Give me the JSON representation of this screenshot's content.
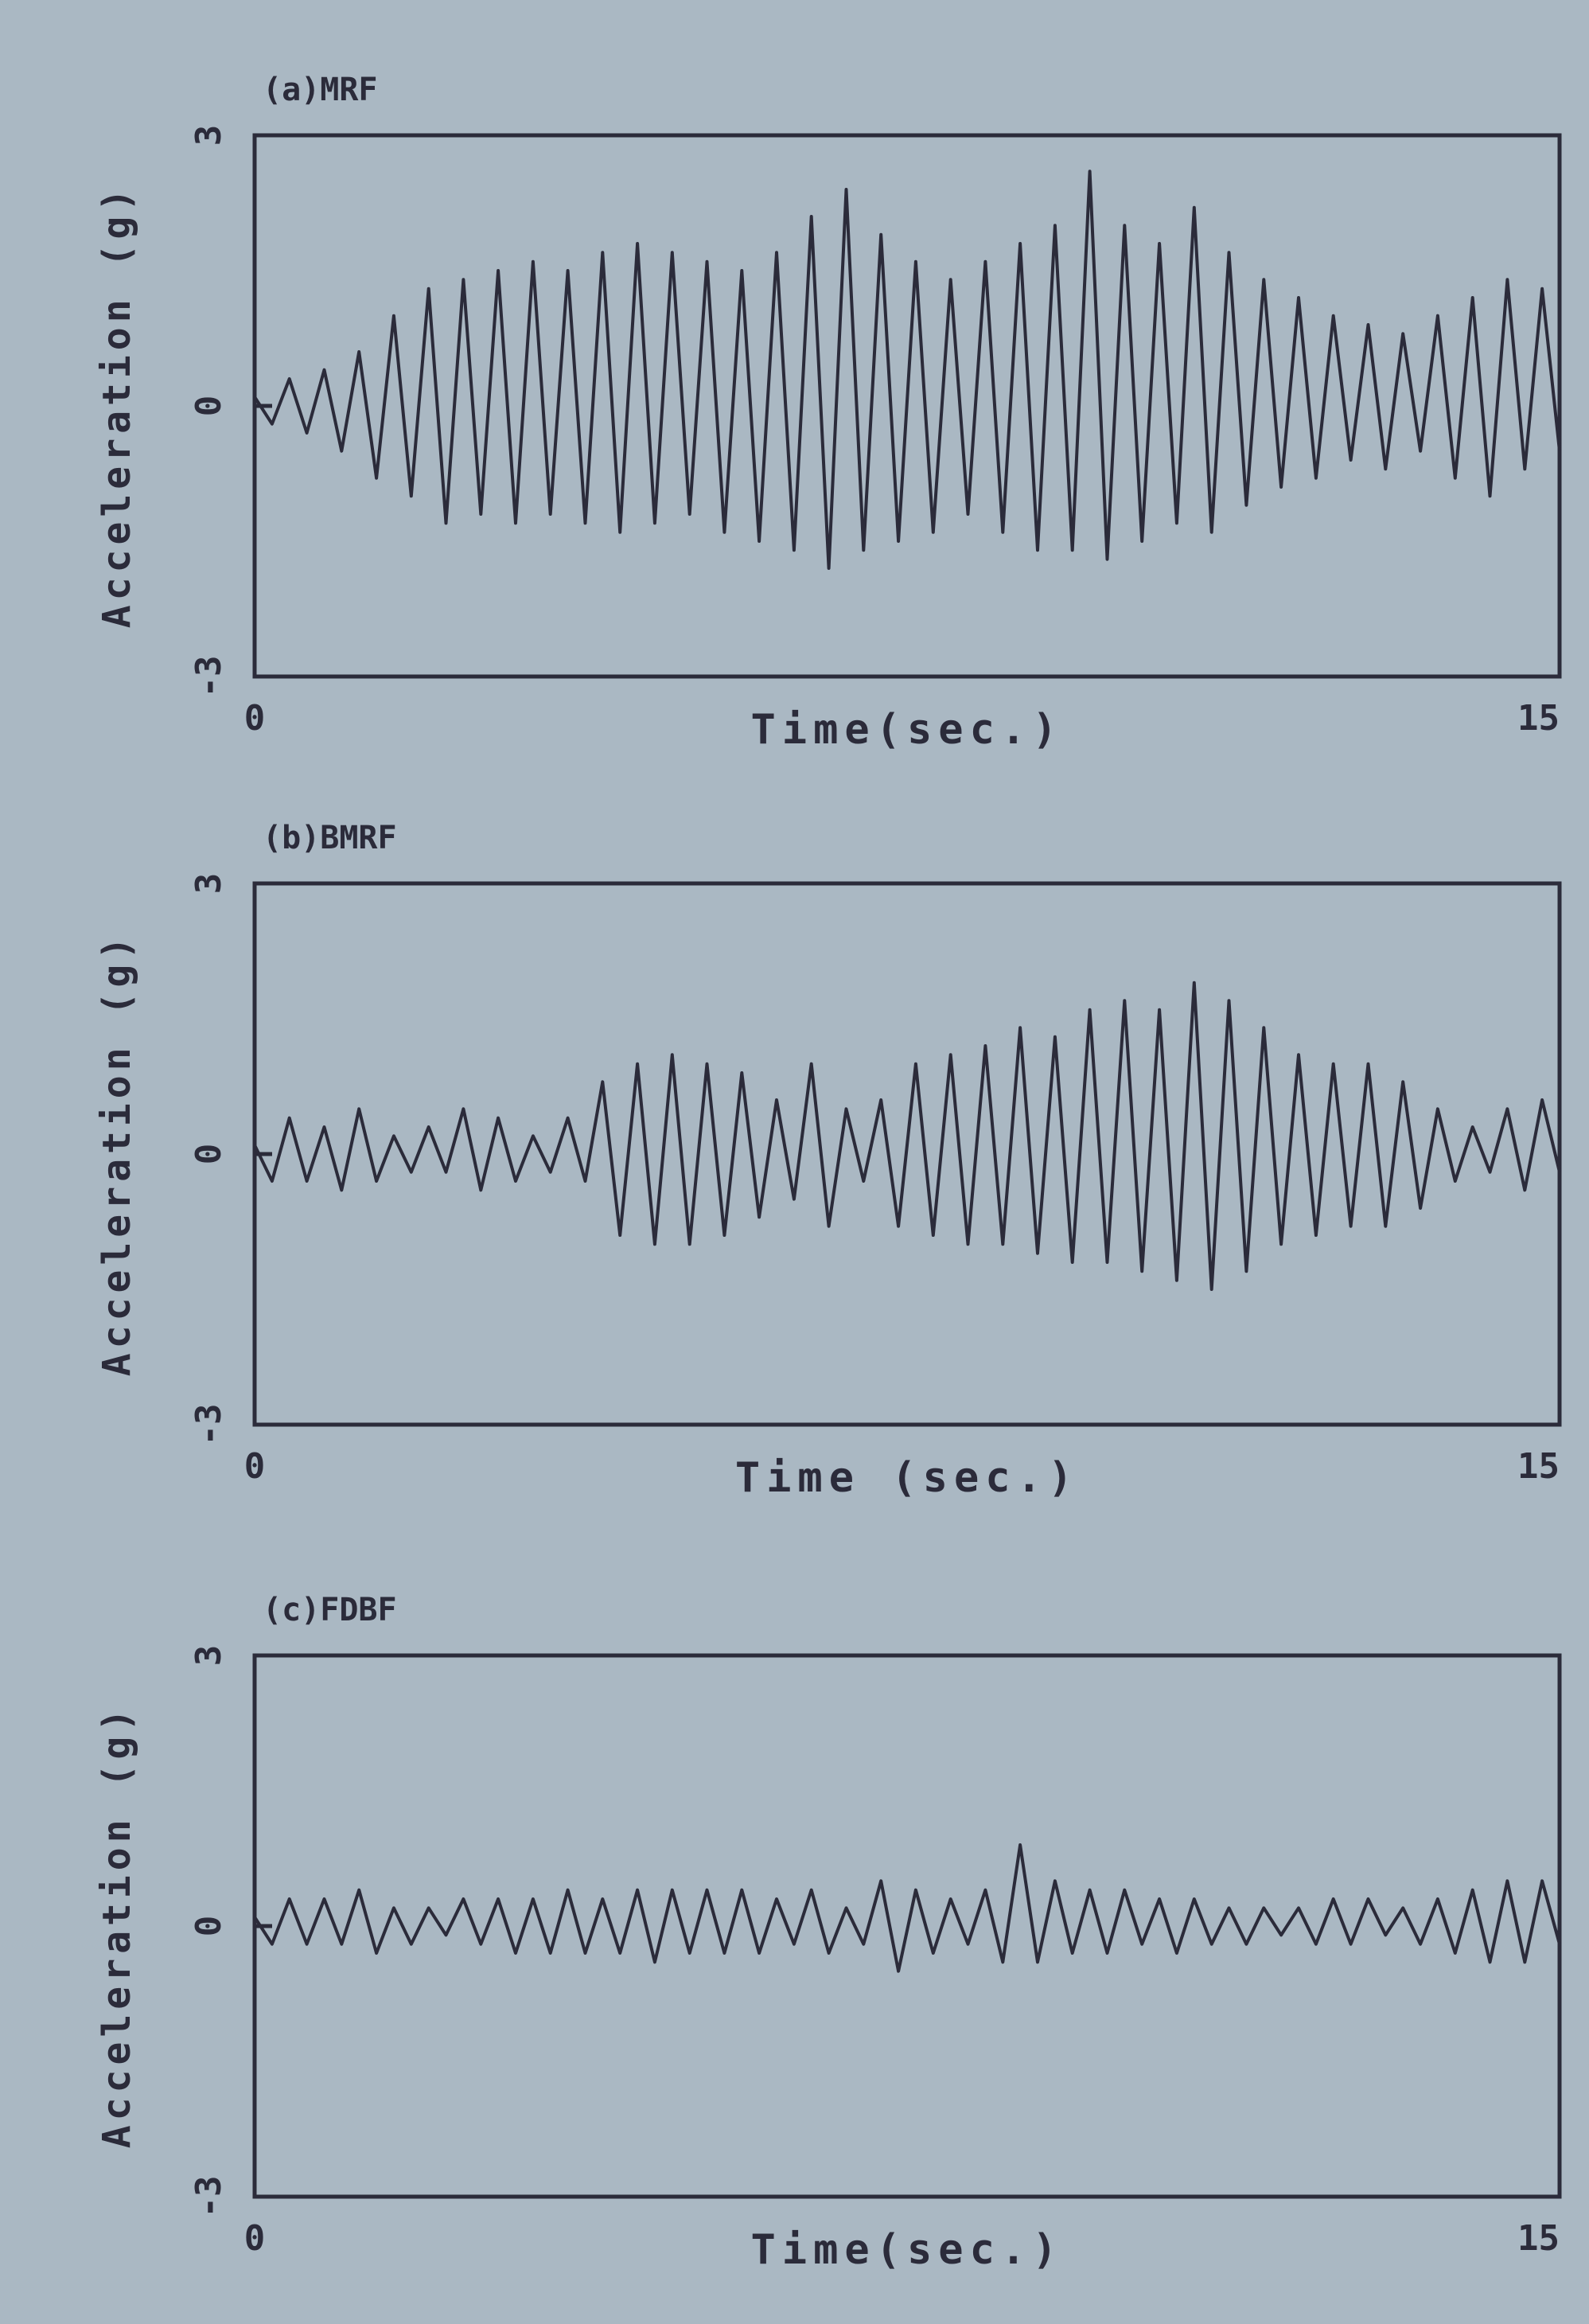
{
  "chart_data": [
    {
      "type": "line",
      "title": "(a)MRF",
      "xlabel": "Time(sec.)",
      "ylabel": "Acceleration (g)",
      "color": "#2b2b3a",
      "xlim": [
        0,
        15
      ],
      "xticks": [
        0,
        15
      ],
      "ylim": [
        -3,
        3
      ],
      "yticks": [
        -3,
        0,
        3
      ],
      "x": [
        0,
        0.2,
        0.4,
        0.6,
        0.8,
        1,
        1.2,
        1.4,
        1.6,
        1.8,
        2,
        2.2,
        2.4,
        2.6,
        2.8,
        3,
        3.2,
        3.4,
        3.6,
        3.8,
        4,
        4.2,
        4.4,
        4.6,
        4.8,
        5,
        5.2,
        5.4,
        5.6,
        5.8,
        6,
        6.2,
        6.4,
        6.6,
        6.8,
        7,
        7.2,
        7.4,
        7.6,
        7.8,
        8,
        8.2,
        8.4,
        8.6,
        8.8,
        9,
        9.2,
        9.4,
        9.6,
        9.8,
        10,
        10.2,
        10.4,
        10.6,
        10.8,
        11,
        11.2,
        11.4,
        11.6,
        11.8,
        12,
        12.2,
        12.4,
        12.6,
        12.8,
        13,
        13.2,
        13.4,
        13.6,
        13.8,
        14,
        14.2,
        14.4,
        14.6,
        14.8,
        15
      ],
      "values": [
        0.1,
        -0.2,
        0.3,
        -0.3,
        0.4,
        -0.5,
        0.6,
        -0.8,
        1.0,
        -1.0,
        1.3,
        -1.3,
        1.4,
        -1.2,
        1.5,
        -1.3,
        1.6,
        -1.2,
        1.5,
        -1.3,
        1.7,
        -1.4,
        1.8,
        -1.3,
        1.7,
        -1.2,
        1.6,
        -1.4,
        1.5,
        -1.5,
        1.7,
        -1.6,
        2.1,
        -1.8,
        2.4,
        -1.6,
        1.9,
        -1.5,
        1.6,
        -1.4,
        1.4,
        -1.2,
        1.6,
        -1.4,
        1.8,
        -1.6,
        2.0,
        -1.6,
        2.6,
        -1.7,
        2.0,
        -1.5,
        1.8,
        -1.3,
        2.2,
        -1.4,
        1.7,
        -1.1,
        1.4,
        -0.9,
        1.2,
        -0.8,
        1.0,
        -0.6,
        0.9,
        -0.7,
        0.8,
        -0.5,
        1.0,
        -0.8,
        1.2,
        -1.0,
        1.4,
        -0.7,
        1.3,
        -0.5
      ]
    },
    {
      "type": "line",
      "title": "(b)BMRF",
      "xlabel": "Time (sec.)",
      "ylabel": "Acceleration (g)",
      "color": "#2b2b3a",
      "xlim": [
        0,
        15
      ],
      "xticks": [
        0,
        15
      ],
      "ylim": [
        -3,
        3
      ],
      "yticks": [
        -3,
        0,
        3
      ],
      "x": [
        0,
        0.2,
        0.4,
        0.6,
        0.8,
        1,
        1.2,
        1.4,
        1.6,
        1.8,
        2,
        2.2,
        2.4,
        2.6,
        2.8,
        3,
        3.2,
        3.4,
        3.6,
        3.8,
        4,
        4.2,
        4.4,
        4.6,
        4.8,
        5,
        5.2,
        5.4,
        5.6,
        5.8,
        6,
        6.2,
        6.4,
        6.6,
        6.8,
        7,
        7.2,
        7.4,
        7.6,
        7.8,
        8,
        8.2,
        8.4,
        8.6,
        8.8,
        9,
        9.2,
        9.4,
        9.6,
        9.8,
        10,
        10.2,
        10.4,
        10.6,
        10.8,
        11,
        11.2,
        11.4,
        11.6,
        11.8,
        12,
        12.2,
        12.4,
        12.6,
        12.8,
        13,
        13.2,
        13.4,
        13.6,
        13.8,
        14,
        14.2,
        14.4,
        14.6,
        14.8,
        15
      ],
      "values": [
        0.1,
        -0.3,
        0.4,
        -0.3,
        0.3,
        -0.4,
        0.5,
        -0.3,
        0.2,
        -0.2,
        0.3,
        -0.2,
        0.5,
        -0.4,
        0.4,
        -0.3,
        0.2,
        -0.2,
        0.4,
        -0.3,
        0.8,
        -0.9,
        1.0,
        -1.0,
        1.1,
        -1.0,
        1.0,
        -0.9,
        0.9,
        -0.7,
        0.6,
        -0.5,
        1.0,
        -0.8,
        0.5,
        -0.3,
        0.6,
        -0.8,
        1.0,
        -0.9,
        1.1,
        -1.0,
        1.2,
        -1.0,
        1.4,
        -1.1,
        1.3,
        -1.2,
        1.6,
        -1.2,
        1.7,
        -1.3,
        1.6,
        -1.4,
        1.9,
        -1.5,
        1.7,
        -1.3,
        1.4,
        -1.0,
        1.1,
        -0.9,
        1.0,
        -0.8,
        1.0,
        -0.8,
        0.8,
        -0.6,
        0.5,
        -0.3,
        0.3,
        -0.2,
        0.5,
        -0.4,
        0.6,
        -0.2
      ]
    },
    {
      "type": "line",
      "title": "(c)FDBF",
      "xlabel": "Time(sec.)",
      "ylabel": "Acceleration (g)",
      "color": "#2b2b3a",
      "xlim": [
        0,
        15
      ],
      "xticks": [
        0,
        15
      ],
      "ylim": [
        -3,
        3
      ],
      "yticks": [
        -3,
        0,
        3
      ],
      "x": [
        0,
        0.2,
        0.4,
        0.6,
        0.8,
        1,
        1.2,
        1.4,
        1.6,
        1.8,
        2,
        2.2,
        2.4,
        2.6,
        2.8,
        3,
        3.2,
        3.4,
        3.6,
        3.8,
        4,
        4.2,
        4.4,
        4.6,
        4.8,
        5,
        5.2,
        5.4,
        5.6,
        5.8,
        6,
        6.2,
        6.4,
        6.6,
        6.8,
        7,
        7.2,
        7.4,
        7.6,
        7.8,
        8,
        8.2,
        8.4,
        8.6,
        8.8,
        9,
        9.2,
        9.4,
        9.6,
        9.8,
        10,
        10.2,
        10.4,
        10.6,
        10.8,
        11,
        11.2,
        11.4,
        11.6,
        11.8,
        12,
        12.2,
        12.4,
        12.6,
        12.8,
        13,
        13.2,
        13.4,
        13.6,
        13.8,
        14,
        14.2,
        14.4,
        14.6,
        14.8,
        15
      ],
      "values": [
        0.1,
        -0.2,
        0.3,
        -0.2,
        0.3,
        -0.2,
        0.4,
        -0.3,
        0.2,
        -0.2,
        0.2,
        -0.1,
        0.3,
        -0.2,
        0.3,
        -0.3,
        0.3,
        -0.3,
        0.4,
        -0.3,
        0.3,
        -0.3,
        0.4,
        -0.4,
        0.4,
        -0.3,
        0.4,
        -0.3,
        0.4,
        -0.3,
        0.3,
        -0.2,
        0.4,
        -0.3,
        0.2,
        -0.2,
        0.5,
        -0.5,
        0.4,
        -0.3,
        0.3,
        -0.2,
        0.4,
        -0.4,
        0.9,
        -0.4,
        0.5,
        -0.3,
        0.4,
        -0.3,
        0.4,
        -0.2,
        0.3,
        -0.3,
        0.3,
        -0.2,
        0.2,
        -0.2,
        0.2,
        -0.1,
        0.2,
        -0.2,
        0.3,
        -0.2,
        0.3,
        -0.1,
        0.2,
        -0.2,
        0.3,
        -0.3,
        0.4,
        -0.4,
        0.5,
        -0.4,
        0.5,
        -0.2
      ]
    }
  ]
}
